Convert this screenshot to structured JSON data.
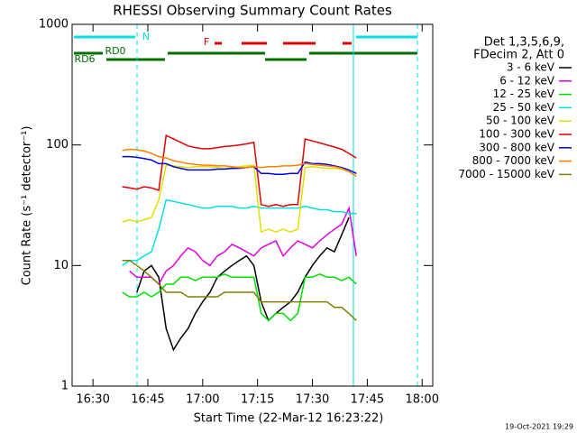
{
  "chart_data": {
    "type": "line",
    "title": "RHESSI Observing Summary Count Rates",
    "x_label": "Start Time (22-Mar-12 16:23:22)",
    "y_label": "Count Rate (s⁻¹ detector⁻¹)",
    "legend_header": [
      "Det 1,3,5,6,9,",
      "FDecim 2, Att 0"
    ],
    "flags": {
      "night": "N",
      "flare": "F",
      "rd0": "RD0",
      "rd6": "RD6"
    },
    "footer": "19-Oct-2021 19:29",
    "log_y": true,
    "xlim": [
      984.3,
      1082.9
    ],
    "ylim": [
      1,
      1000
    ],
    "xticks": [
      {
        "value": 990,
        "label": "16:30"
      },
      {
        "value": 1005,
        "label": "16:45"
      },
      {
        "value": 1020,
        "label": "17:00"
      },
      {
        "value": 1035,
        "label": "17:15"
      },
      {
        "value": 1050,
        "label": "17:30"
      },
      {
        "value": 1065,
        "label": "17:45"
      },
      {
        "value": 1080,
        "label": "18:00"
      }
    ],
    "yticks": [
      1,
      10,
      100,
      1000
    ],
    "x": [
      998,
      1000,
      1002,
      1004,
      1006,
      1008,
      1010,
      1012,
      1014,
      1016,
      1018,
      1020,
      1022,
      1024,
      1026,
      1028,
      1030,
      1032,
      1034,
      1036,
      1038,
      1040,
      1042,
      1044,
      1046,
      1048,
      1050,
      1052,
      1054,
      1056,
      1058,
      1060,
      1062
    ],
    "series": [
      {
        "name": "3 - 6 keV",
        "color": "#000000",
        "values": [
          null,
          null,
          6,
          9,
          10,
          8,
          3,
          2,
          2.5,
          3,
          4,
          5,
          6,
          8,
          9,
          10,
          11,
          12,
          10,
          5,
          3.5,
          4,
          4.5,
          5,
          6,
          8,
          10,
          12,
          14,
          13,
          18,
          25,
          null
        ]
      },
      {
        "name": "6 - 12 keV",
        "color": "#e000e0",
        "values": [
          null,
          9,
          8,
          8,
          8,
          7,
          9,
          10,
          12,
          14,
          13,
          11,
          10,
          12,
          13,
          15,
          14,
          13,
          12,
          14,
          15,
          16,
          12,
          14,
          16,
          15,
          14,
          16,
          18,
          20,
          22,
          30,
          12
        ]
      },
      {
        "name": "12 - 25 keV",
        "color": "#00e000",
        "values": [
          6,
          5.5,
          5.5,
          6,
          5.5,
          6,
          7,
          7,
          8,
          8,
          7.5,
          8,
          8,
          8,
          8.5,
          8,
          8,
          8,
          8,
          4,
          3.5,
          4,
          4,
          3.5,
          4,
          8,
          8,
          8.5,
          8,
          8,
          7.5,
          8,
          7
        ]
      },
      {
        "name": "25 - 50 keV",
        "color": "#00e0e0",
        "values": [
          10,
          11,
          11,
          12,
          13,
          20,
          35,
          34,
          33,
          32,
          31,
          30,
          30,
          31,
          31,
          31,
          30,
          30,
          31,
          30,
          30,
          30,
          30,
          30,
          30,
          31,
          30,
          29,
          29,
          28,
          28,
          27,
          27
        ]
      },
      {
        "name": "50 - 100 keV",
        "color": "#e0e000",
        "values": [
          23,
          24,
          23,
          24,
          25,
          35,
          68,
          67,
          66,
          65,
          66,
          66,
          66,
          65,
          64,
          65,
          66,
          67,
          68,
          19,
          20,
          19,
          20,
          19,
          20,
          65,
          66,
          65,
          64,
          64,
          63,
          60,
          55
        ]
      },
      {
        "name": "100 - 300 keV",
        "color": "#e00000",
        "values": [
          45,
          44,
          43,
          45,
          44,
          42,
          120,
          112,
          105,
          98,
          95,
          93,
          93,
          95,
          97,
          98,
          100,
          102,
          105,
          32,
          31,
          32,
          31,
          32,
          32,
          112,
          108,
          104,
          100,
          96,
          92,
          85,
          78
        ]
      },
      {
        "name": "300 - 800 keV",
        "color": "#0000e0",
        "values": [
          80,
          80,
          79,
          77,
          75,
          70,
          70,
          66,
          64,
          62,
          62,
          62,
          62,
          63,
          63,
          64,
          64,
          65,
          66,
          58,
          58,
          57,
          57,
          58,
          58,
          72,
          70,
          70,
          69,
          67,
          65,
          62,
          58
        ]
      },
      {
        "name": "800 - 7000 keV",
        "color": "#ff8000",
        "values": [
          90,
          92,
          91,
          89,
          85,
          80,
          78,
          74,
          72,
          70,
          69,
          68,
          68,
          67,
          67,
          66,
          65,
          65,
          66,
          65,
          66,
          66,
          67,
          67,
          68,
          70,
          69,
          68,
          67,
          66,
          64,
          60,
          55
        ]
      },
      {
        "name": "7000 - 15000 keV",
        "color": "#808000",
        "values": [
          11,
          11,
          10,
          9,
          8,
          7,
          6,
          6,
          6,
          5.5,
          5.5,
          5.5,
          5.5,
          5.5,
          6,
          6,
          6,
          6,
          6,
          5,
          5,
          5,
          5,
          5,
          5,
          5,
          5,
          5,
          5,
          4.5,
          4.5,
          4,
          3.5
        ]
      }
    ]
  }
}
